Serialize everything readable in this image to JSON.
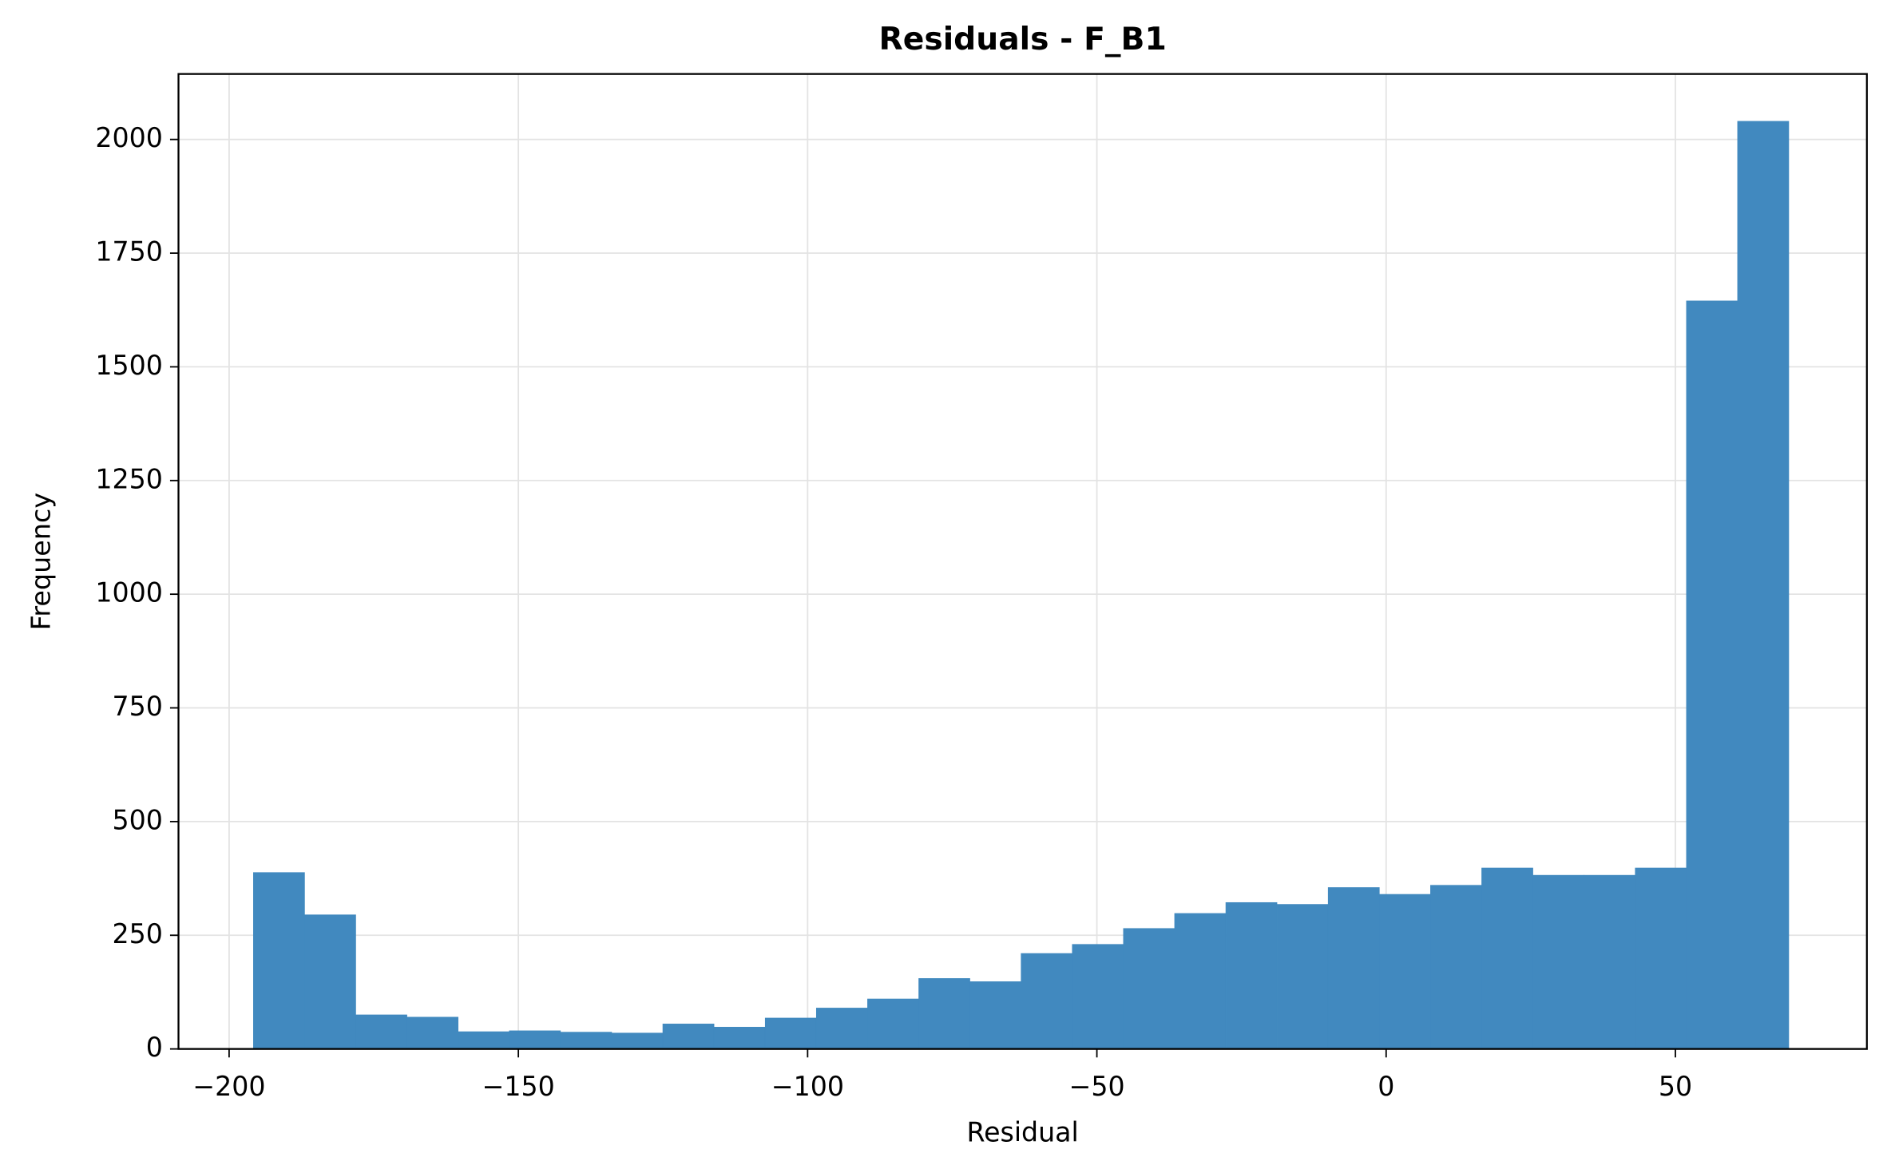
{
  "chart_data": {
    "type": "histogram",
    "title": "Residuals - F_B1",
    "x_label": "Residual",
    "y_label": "Frequency",
    "bins": [
      -195.8,
      -186.95,
      -178.11,
      -169.26,
      -160.41,
      -151.57,
      -142.72,
      -133.87,
      -125.03,
      -116.18,
      -107.33,
      -98.49,
      -89.64,
      -80.79,
      -71.95,
      -63.1,
      -54.25,
      -45.41,
      -36.56,
      -27.71,
      -18.87,
      -10.02,
      -1.17,
      7.67,
      16.52,
      25.37,
      34.21,
      43.06,
      51.91,
      60.75,
      69.6
    ],
    "values": [
      388,
      295,
      75,
      70,
      38,
      40,
      37,
      35,
      55,
      48,
      68,
      90,
      110,
      155,
      148,
      210,
      230,
      265,
      298,
      322,
      318,
      355,
      340,
      360,
      398,
      382,
      382,
      398,
      1645,
      2040
    ],
    "color": "#4189bf",
    "xlim": [
      -208.75,
      83.1
    ],
    "xticks": [
      {
        "value": -200,
        "label": "−200"
      },
      {
        "value": -150,
        "label": "−150"
      },
      {
        "value": -100,
        "label": "−100"
      },
      {
        "value": -50,
        "label": "−50"
      },
      0,
      50
    ],
    "ylim": [
      0,
      2144
    ],
    "yticks": [
      0,
      250,
      500,
      750,
      1000,
      1250,
      1500,
      1750,
      2000
    ],
    "grid": true
  }
}
